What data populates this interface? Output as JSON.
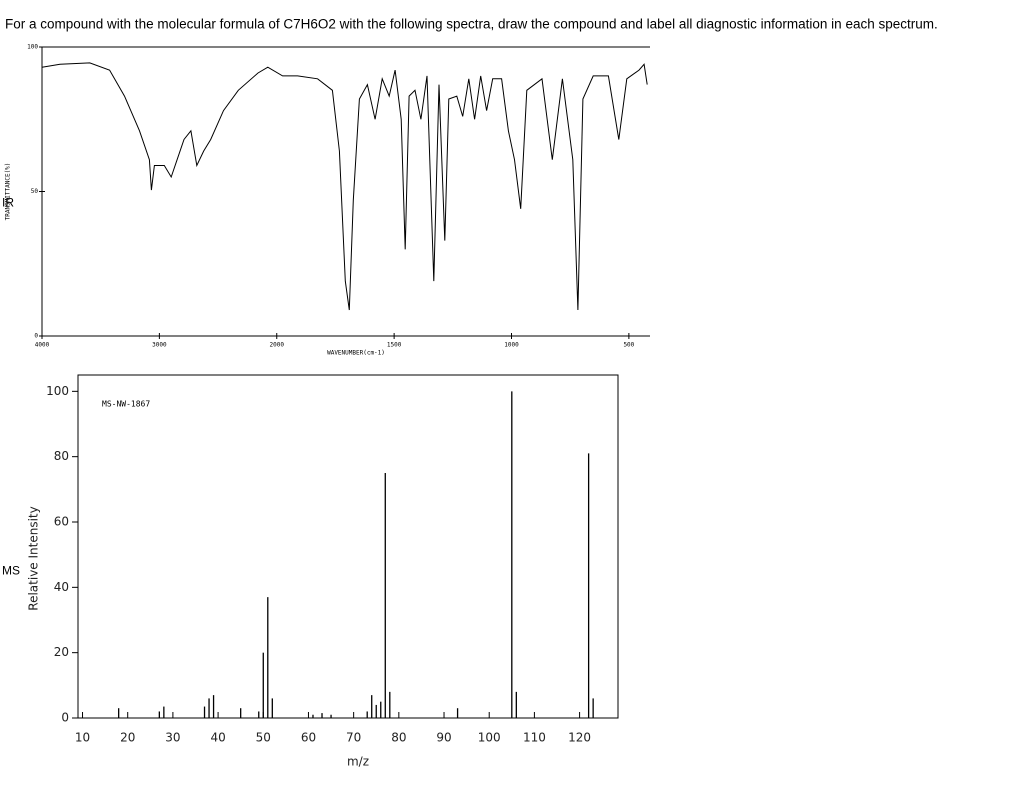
{
  "question": "For a compound with the molecular formula of C7H6O2 with the following spectra, draw the compound and label all diagnostic information in each spectrum.",
  "chart_data": [
    {
      "type": "line",
      "label": "IR",
      "xlabel": "WAVENUMBER(cm-1)",
      "ylabel": "TRANSMITTANCE(%)",
      "xlim": [
        4000,
        410
      ],
      "xticks": [
        4000,
        3000,
        2000,
        1500,
        1000,
        500
      ],
      "ylim": [
        0,
        100
      ],
      "yticks": [
        0,
        50,
        100
      ],
      "color": "#000000",
      "x": [
        4000,
        3847,
        3593,
        3424,
        3297,
        3169,
        3085,
        3068,
        3042,
        2958,
        2899,
        2849,
        2790,
        2731,
        2681,
        2622,
        2563,
        2454,
        2328,
        2160,
        2076,
        1975,
        1911,
        1826,
        1763,
        1733,
        1708,
        1691,
        1674,
        1648,
        1614,
        1581,
        1551,
        1521,
        1496,
        1470,
        1453,
        1436,
        1411,
        1386,
        1360,
        1331,
        1309,
        1284,
        1267,
        1233,
        1208,
        1182,
        1157,
        1131,
        1106,
        1080,
        1042,
        1013,
        987,
        961,
        935,
        870,
        826,
        783,
        739,
        717,
        696,
        652,
        587,
        543,
        509,
        457,
        435,
        422
      ],
      "values": [
        93,
        94,
        94.5,
        92,
        83,
        71,
        61,
        50.5,
        59,
        59,
        55,
        61,
        68,
        71,
        59,
        64,
        68,
        78,
        85,
        91,
        93,
        90,
        90,
        89,
        85,
        64,
        19,
        9,
        47,
        82,
        87,
        75,
        89,
        83,
        92,
        75,
        30,
        83,
        85,
        75,
        90,
        19,
        87,
        33,
        82,
        83,
        76,
        89,
        75,
        90,
        78,
        89,
        89,
        71,
        61,
        44,
        85,
        89,
        61,
        89,
        61,
        9,
        82,
        90,
        90,
        68,
        89,
        92,
        94,
        87
      ]
    },
    {
      "type": "bar",
      "label": "MS",
      "title": "MS-NW-1867",
      "xlabel": "m/z",
      "ylabel": "Relative Intensity",
      "xlim": [
        9,
        128.5
      ],
      "xticks": [
        10,
        20,
        30,
        40,
        50,
        60,
        70,
        80,
        90,
        100,
        110,
        120
      ],
      "ylim": [
        0,
        105
      ],
      "yticks": [
        0,
        20,
        40,
        60,
        80,
        100
      ],
      "color": "#000000",
      "x": [
        18,
        27,
        28,
        37,
        38,
        39,
        45,
        49,
        50,
        51,
        52,
        61,
        63,
        65,
        73,
        74,
        75,
        76,
        77,
        78,
        93,
        105,
        106,
        122,
        123
      ],
      "values": [
        3,
        2,
        3.5,
        3.5,
        6,
        7,
        3,
        2,
        20,
        37,
        6,
        1,
        1.5,
        1,
        2,
        7,
        4,
        5,
        75,
        8,
        3,
        100,
        8,
        81,
        6
      ]
    }
  ]
}
